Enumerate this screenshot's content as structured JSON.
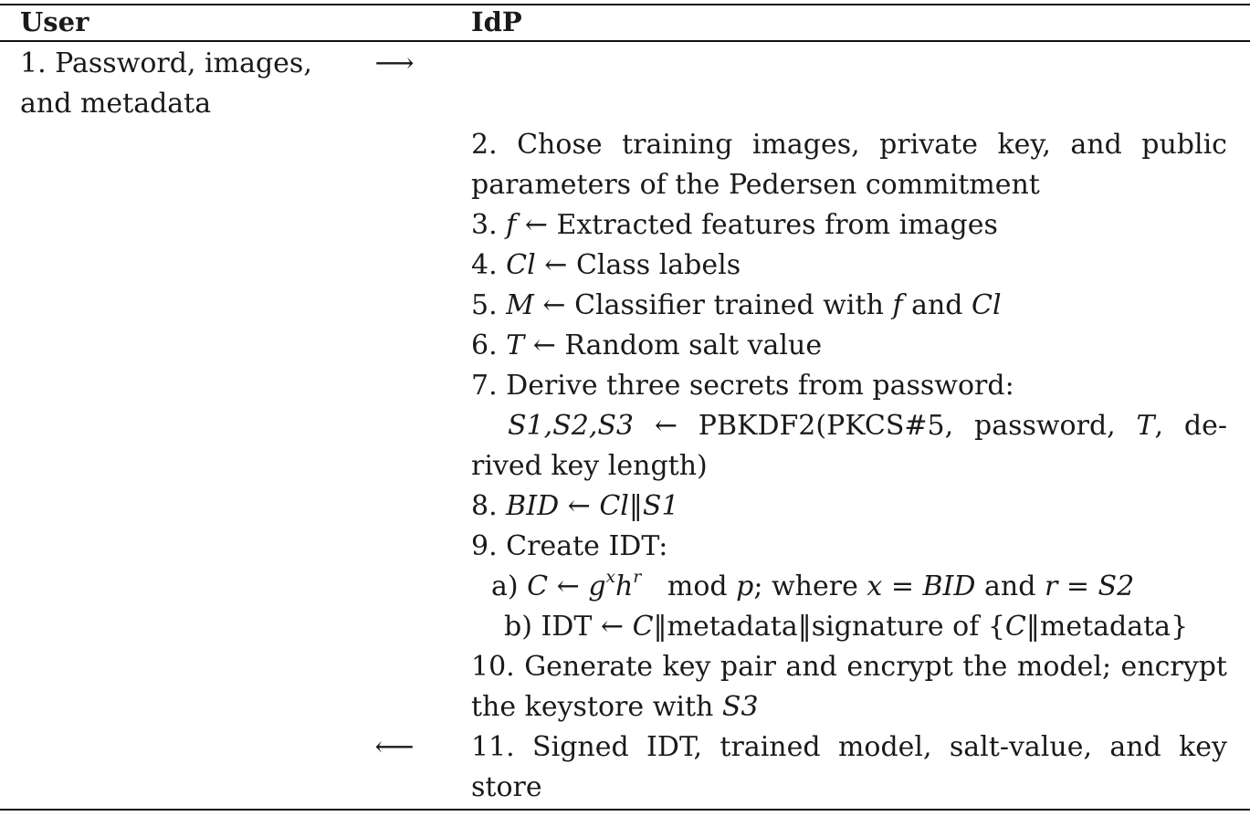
{
  "headers": {
    "user": "User",
    "idp": "IdP"
  },
  "arrows": {
    "to_idp": "⟶",
    "to_user": "⟵"
  },
  "steps": {
    "s1": {
      "line1": "1.  Password, images,",
      "line2": "and metadata"
    },
    "s2": {
      "line1": "2.  Chose training images, private key, and public",
      "line2": "parameters of the Pedersen commitment"
    },
    "s3": {
      "num": "3. ",
      "sym": "f",
      "text": " ← Extracted features from images"
    },
    "s4": {
      "num": "4. ",
      "sym": "Cl",
      "text": " ← Class labels"
    },
    "s5": {
      "num": "5. ",
      "sym": "M",
      "text_a": " ← Classifier trained with ",
      "sym_f": "f",
      "text_b": " and ",
      "sym_cl": "Cl"
    },
    "s6": {
      "num": "6. ",
      "sym": "T",
      "text": " ← Random salt value"
    },
    "s7": {
      "line1": "7. Derive three secrets from password:",
      "line2_a": "S1,S2,S3",
      "line2_b": " ← PBKDF2(PKCS#5, password, ",
      "line2_c": "T",
      "line2_d": ", de-",
      "line3": "rived key length)"
    },
    "s8": {
      "num": "8. ",
      "sym_a": "BID",
      "arrow": " ← ",
      "sym_b": "Cl",
      "sep": "‖",
      "sym_c": "S1"
    },
    "s9": {
      "line1": "9. Create IDT:",
      "a_label": "a) ",
      "a_c": "C",
      "a_arrow": " ← ",
      "a_g": "g",
      "a_x": "x",
      "a_h": "h",
      "a_r": "r",
      "a_mod": "   mod ",
      "a_p": "p",
      "a_where": "; where ",
      "a_x2": "x",
      "a_eq1": " = ",
      "a_bid": "BID",
      "a_and": " and ",
      "a_r2": "r",
      "a_eq2": " = ",
      "a_s2": "S2",
      "b_label": "b) IDT ← ",
      "b_c": "C",
      "b_mid": "‖metadata‖signature of {",
      "b_c2": "C",
      "b_end": "‖metadata}"
    },
    "s10": {
      "line1": "10. Generate key pair and encrypt the model; encrypt",
      "line2_a": "the keystore with ",
      "line2_sym": "S3"
    },
    "s11": {
      "line1": "11.  Signed IDT, trained model, salt-value, and key",
      "line2": "store"
    }
  }
}
